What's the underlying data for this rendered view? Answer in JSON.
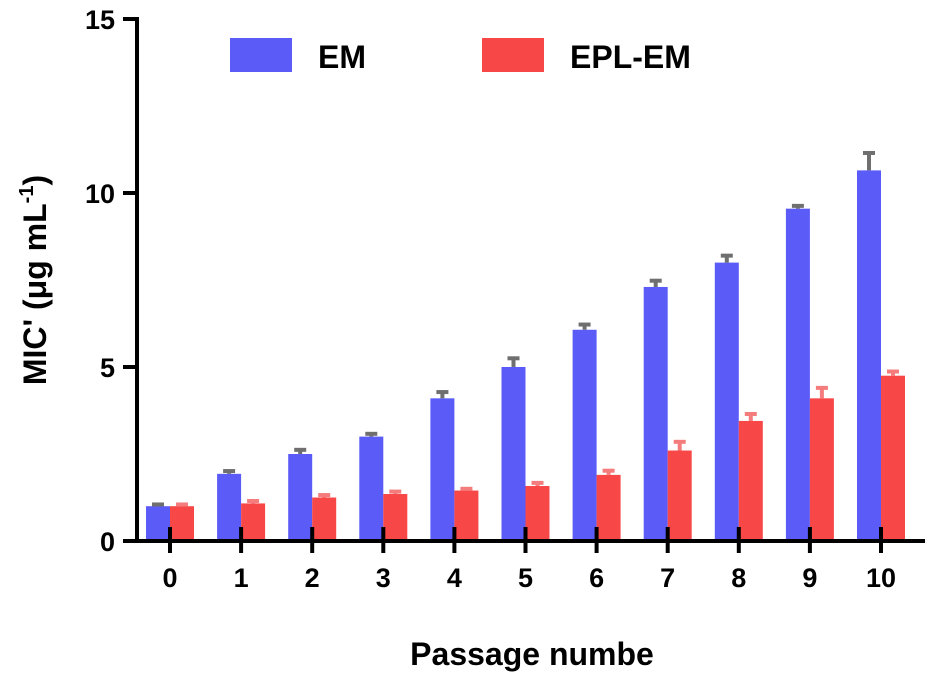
{
  "colors": {
    "EM": "#5b5bf7",
    "EPL-EM": "#f84747",
    "EM_error": "#6f6f6f",
    "EPL-EM_error": "#f47c7c",
    "axis": "#000000"
  },
  "chart_data": {
    "type": "bar",
    "title": "",
    "xlabel": "Passage numbe",
    "ylabel": "MIC' (μg mL",
    "ylabel_sup": "-1",
    "ylabel_close": ")",
    "ylim": [
      0,
      15
    ],
    "yticks": [
      "0",
      "5",
      "10",
      "15"
    ],
    "ytick_values": [
      0,
      5,
      10,
      15
    ],
    "grid": false,
    "legend_position": "top",
    "categories": [
      "0",
      "1",
      "2",
      "3",
      "4",
      "5",
      "6",
      "7",
      "8",
      "9",
      "10"
    ],
    "series": [
      {
        "name": "EM",
        "values": [
          1.0,
          1.93,
          2.5,
          3.0,
          4.1,
          5.0,
          6.07,
          7.3,
          8.0,
          9.55,
          10.65
        ],
        "errors": [
          0.05,
          0.08,
          0.12,
          0.08,
          0.18,
          0.25,
          0.15,
          0.18,
          0.2,
          0.08,
          0.5
        ]
      },
      {
        "name": "EPL-EM",
        "values": [
          1.0,
          1.08,
          1.25,
          1.35,
          1.45,
          1.58,
          1.9,
          2.6,
          3.45,
          4.1,
          4.75
        ],
        "errors": [
          0.05,
          0.07,
          0.07,
          0.07,
          0.05,
          0.09,
          0.12,
          0.25,
          0.2,
          0.3,
          0.12
        ]
      }
    ]
  }
}
